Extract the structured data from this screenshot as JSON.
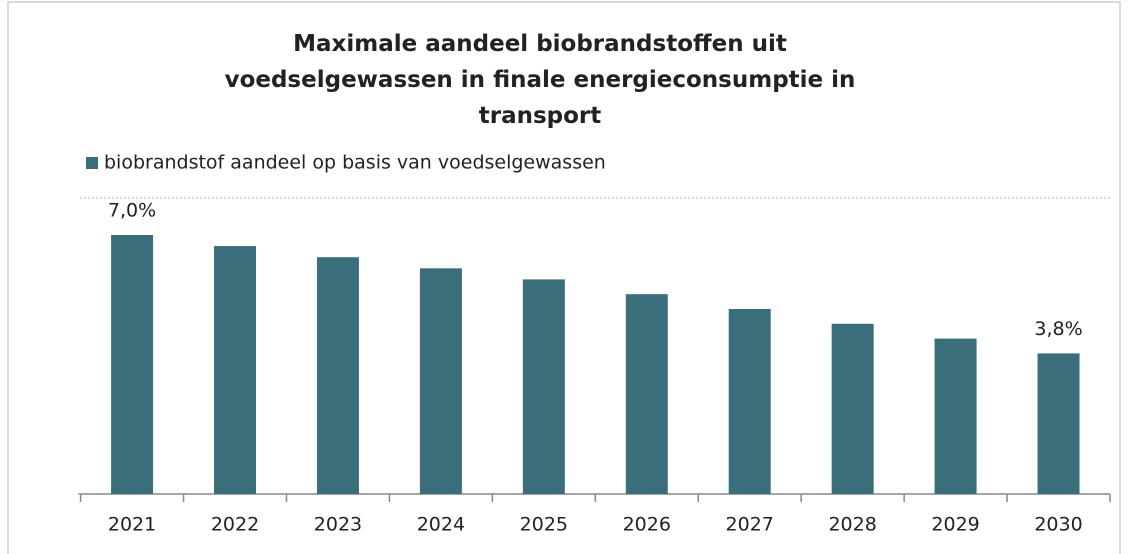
{
  "chart_data": {
    "type": "bar",
    "title": "Maximale aandeel biobrandstoffen uit voedselgewassen in finale energieconsumptie in transport",
    "categories": [
      "2021",
      "2022",
      "2023",
      "2024",
      "2025",
      "2026",
      "2027",
      "2028",
      "2029",
      "2030"
    ],
    "series": [
      {
        "name": "biobrandstof aandeel op basis van voedselgewassen",
        "color": "#3b6e7b",
        "values": [
          7.0,
          6.7,
          6.4,
          6.1,
          5.8,
          5.4,
          5.0,
          4.6,
          4.2,
          3.8
        ],
        "value_labels": [
          "7,0%",
          null,
          null,
          null,
          null,
          null,
          null,
          null,
          null,
          "3,8%"
        ]
      }
    ],
    "ylim": [
      0,
      8
    ],
    "legend": "top-left"
  }
}
